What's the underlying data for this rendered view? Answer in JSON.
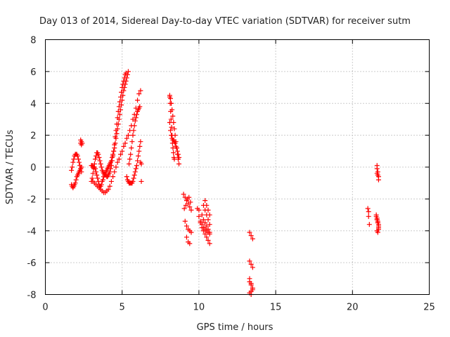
{
  "chart_data": {
    "type": "scatter",
    "title": "Day 013 of 2014, Sidereal Day-to-day VTEC variation (SDTVAR) for receiver sutm",
    "xlabel": "GPS time / hours",
    "ylabel": "SDTVAR / TECUs",
    "xlim": [
      0,
      25
    ],
    "ylim": [
      -8,
      8
    ],
    "xticks": [
      0,
      5,
      10,
      15,
      20,
      25
    ],
    "yticks": [
      -8,
      -6,
      -4,
      -2,
      0,
      2,
      4,
      6,
      8
    ],
    "grid": true,
    "marker": "+",
    "marker_color": "#ff0000",
    "series": [
      {
        "name": "SDTVAR",
        "x": [
          1.7,
          1.75,
          1.8,
          1.85,
          1.9,
          1.95,
          2.0,
          2.05,
          2.1,
          2.15,
          2.2,
          2.25,
          2.3,
          2.35,
          1.7,
          1.75,
          1.8,
          1.85,
          1.9,
          1.95,
          2.0,
          2.05,
          2.1,
          2.15,
          2.2,
          2.25,
          2.3,
          2.35,
          2.3,
          2.35,
          2.4,
          2.3,
          2.35,
          3.0,
          3.05,
          3.1,
          3.15,
          3.2,
          3.25,
          3.3,
          3.35,
          3.4,
          3.45,
          3.5,
          3.55,
          3.6,
          3.65,
          3.7,
          3.75,
          3.8,
          3.85,
          3.9,
          3.95,
          4.0,
          4.05,
          4.1,
          4.15,
          4.2,
          4.25,
          4.3,
          4.35,
          4.4,
          4.45,
          4.5,
          4.55,
          4.6,
          4.65,
          4.7,
          4.75,
          4.8,
          4.85,
          4.9,
          4.95,
          5.0,
          5.05,
          5.1,
          5.15,
          5.2,
          5.25,
          5.3,
          5.35,
          5.4,
          5.45,
          5.5,
          5.55,
          5.6,
          5.65,
          5.7,
          5.75,
          5.8,
          5.85,
          5.9,
          5.95,
          6.0,
          6.05,
          6.1,
          6.15,
          6.2,
          6.25,
          3.0,
          3.05,
          3.1,
          3.15,
          3.2,
          3.25,
          3.3,
          3.35,
          3.4,
          3.45,
          3.5,
          3.55,
          3.6,
          3.65,
          3.7,
          3.75,
          3.8,
          3.85,
          3.9,
          3.95,
          4.0,
          4.05,
          4.1,
          4.15,
          4.2,
          4.25,
          4.3,
          4.35,
          4.4,
          4.45,
          4.5,
          4.55,
          4.6,
          4.65,
          4.7,
          4.75,
          4.8,
          4.85,
          4.9,
          4.95,
          5.0,
          5.05,
          5.1,
          5.15,
          5.2,
          5.25,
          5.3,
          5.35,
          5.4,
          5.45,
          5.5,
          5.55,
          5.6,
          5.65,
          5.7,
          5.75,
          5.8,
          5.85,
          5.9,
          5.95,
          6.0,
          6.05,
          6.1,
          6.15,
          6.2,
          6.25,
          3.1,
          3.2,
          3.3,
          3.4,
          3.5,
          3.6,
          3.7,
          3.8,
          3.9,
          4.0,
          4.1,
          4.2,
          4.3,
          4.4,
          4.5,
          4.6,
          4.7,
          4.8,
          4.9,
          5.0,
          5.1,
          5.2,
          5.3,
          5.4,
          5.5,
          5.6,
          5.7,
          5.8,
          5.9,
          6.0,
          6.1,
          6.2,
          8.1,
          8.13,
          8.16,
          8.19,
          8.22,
          8.25,
          8.28,
          8.31,
          8.34,
          8.37,
          8.4,
          8.1,
          8.15,
          8.2,
          8.25,
          8.3,
          8.35,
          8.4,
          8.45,
          8.5,
          8.55,
          8.6,
          8.65,
          8.7,
          8.1,
          8.15,
          8.2,
          8.25,
          8.3,
          8.35,
          8.4,
          8.45,
          8.5,
          8.55,
          8.6,
          8.65,
          8.7,
          9.0,
          9.1,
          9.2,
          9.3,
          9.4,
          9.5,
          9.05,
          9.15,
          9.25,
          9.35,
          9.45,
          9.1,
          9.2,
          9.3,
          9.4,
          9.5,
          9.2,
          9.3,
          9.4,
          9.9,
          10.0,
          10.0,
          10.1,
          10.2,
          10.3,
          10.4,
          10.5,
          10.6,
          10.7,
          10.1,
          10.2,
          10.3,
          10.4,
          10.5,
          10.6,
          10.7,
          10.2,
          10.3,
          10.4,
          10.5,
          10.6,
          10.7,
          10.3,
          10.4,
          10.5,
          10.6,
          10.7,
          10.4,
          10.5,
          10.6,
          10.7,
          13.3,
          13.4,
          13.5,
          13.3,
          13.4,
          13.5,
          13.3,
          13.4,
          13.5,
          13.4,
          13.3,
          13.4,
          13.5,
          13.3,
          13.4,
          13.5,
          21.0,
          21.05,
          21.05,
          21.1,
          21.6,
          21.6,
          21.65,
          21.6,
          21.65,
          21.7,
          21.7,
          21.55,
          21.6,
          21.65,
          21.7,
          21.55,
          21.6,
          21.65,
          21.7,
          21.6,
          21.65,
          21.7,
          21.6,
          21.65,
          21.7
        ],
        "y": [
          -0.2,
          0.0,
          0.3,
          0.5,
          0.7,
          0.8,
          0.8,
          0.8,
          0.7,
          0.5,
          0.3,
          0.1,
          -0.1,
          -0.3,
          -1.1,
          -1.2,
          -1.3,
          -1.2,
          -1.1,
          -1.0,
          -0.8,
          -0.6,
          -0.5,
          -0.4,
          -0.3,
          -0.2,
          -0.1,
          0.0,
          1.5,
          1.6,
          1.5,
          1.7,
          1.4,
          -0.9,
          -0.7,
          -0.4,
          -0.1,
          0.2,
          0.5,
          0.7,
          0.9,
          0.9,
          0.8,
          0.6,
          0.4,
          0.2,
          0.0,
          -0.2,
          -0.3,
          -0.4,
          -0.4,
          -0.4,
          -0.3,
          -0.2,
          -0.1,
          0.0,
          0.1,
          0.2,
          0.3,
          0.4,
          0.6,
          0.8,
          1.0,
          1.2,
          1.5,
          1.8,
          2.1,
          2.4,
          2.7,
          3.0,
          3.3,
          3.6,
          3.9,
          4.2,
          4.5,
          4.8,
          5.0,
          5.2,
          5.4,
          5.6,
          5.8,
          6.0,
          0.2,
          0.5,
          0.8,
          1.2,
          1.6,
          2.0,
          2.3,
          2.6,
          2.9,
          3.1,
          3.3,
          3.5,
          3.6,
          3.7,
          3.8,
          0.3,
          0.2,
          0.1,
          0.1,
          0.0,
          0.0,
          0.0,
          -0.1,
          -0.3,
          -0.5,
          -0.7,
          -0.9,
          -1.1,
          -1.2,
          -1.2,
          -1.1,
          -0.9,
          -0.8,
          -0.6,
          -0.5,
          -0.5,
          -0.5,
          -0.6,
          -0.6,
          -0.5,
          -0.4,
          -0.3,
          -0.1,
          0.1,
          0.4,
          0.7,
          1.0,
          1.4,
          1.9,
          2.3,
          2.7,
          3.1,
          3.5,
          3.8,
          4.1,
          4.4,
          4.7,
          5.0,
          5.2,
          5.4,
          5.6,
          5.8,
          5.9,
          -0.6,
          -0.8,
          -0.9,
          -1.0,
          -1.0,
          -1.0,
          -1.0,
          -1.0,
          -0.9,
          -0.7,
          -0.5,
          -0.3,
          -0.1,
          0.1,
          0.4,
          0.7,
          1.0,
          1.3,
          1.6,
          -0.9,
          -0.9,
          -1.0,
          -1.1,
          -1.2,
          -1.3,
          -1.4,
          -1.5,
          -1.6,
          -1.6,
          -1.5,
          -1.4,
          -1.2,
          -0.9,
          -0.6,
          -0.3,
          0.0,
          0.3,
          0.5,
          0.8,
          1.0,
          1.3,
          1.5,
          1.8,
          2.0,
          2.3,
          2.6,
          3.0,
          3.3,
          3.7,
          4.2,
          4.6,
          4.8,
          4.4,
          4.0,
          3.5,
          3.0,
          2.5,
          2.0,
          1.5,
          1.2,
          0.9,
          0.6,
          0.5,
          2.8,
          2.3,
          2.0,
          1.8,
          1.7,
          1.7,
          1.6,
          1.5,
          1.3,
          1.2,
          1.0,
          0.8,
          0.6,
          4.5,
          4.3,
          4.0,
          3.6,
          3.2,
          2.8,
          2.4,
          2.0,
          1.6,
          1.2,
          0.8,
          0.5,
          0.2,
          -1.7,
          -1.9,
          -2.1,
          -2.3,
          -2.5,
          -2.7,
          -2.6,
          -2.4,
          -2.0,
          -1.9,
          -2.2,
          -3.4,
          -3.7,
          -3.9,
          -4.0,
          -4.1,
          -4.4,
          -4.7,
          -4.8,
          -2.6,
          -2.7,
          -3.1,
          -3.4,
          -3.6,
          -3.8,
          -3.9,
          -4.0,
          -4.1,
          -4.2,
          -3.5,
          -3.8,
          -4.0,
          -4.2,
          -4.4,
          -4.6,
          -4.8,
          -3.0,
          -3.3,
          -3.5,
          -3.7,
          -3.9,
          -4.1,
          -2.4,
          -2.7,
          -3.0,
          -3.3,
          -3.6,
          -2.1,
          -2.4,
          -2.7,
          -3.0,
          -4.1,
          -4.3,
          -4.5,
          -5.9,
          -6.1,
          -6.3,
          -7.2,
          -7.4,
          -7.6,
          -7.8,
          -7.0,
          -7.3,
          -7.6,
          -7.9,
          -8.0,
          -7.7,
          -2.6,
          -2.8,
          -3.1,
          -3.6,
          0.1,
          -0.1,
          -0.3,
          -0.4,
          -0.5,
          -0.6,
          -0.8,
          -3.0,
          -3.2,
          -3.4,
          -3.6,
          -3.1,
          -3.3,
          -3.5,
          -3.8,
          -4.0,
          -4.1,
          -3.9,
          -3.3,
          -3.5,
          -3.7
        ]
      }
    ]
  }
}
